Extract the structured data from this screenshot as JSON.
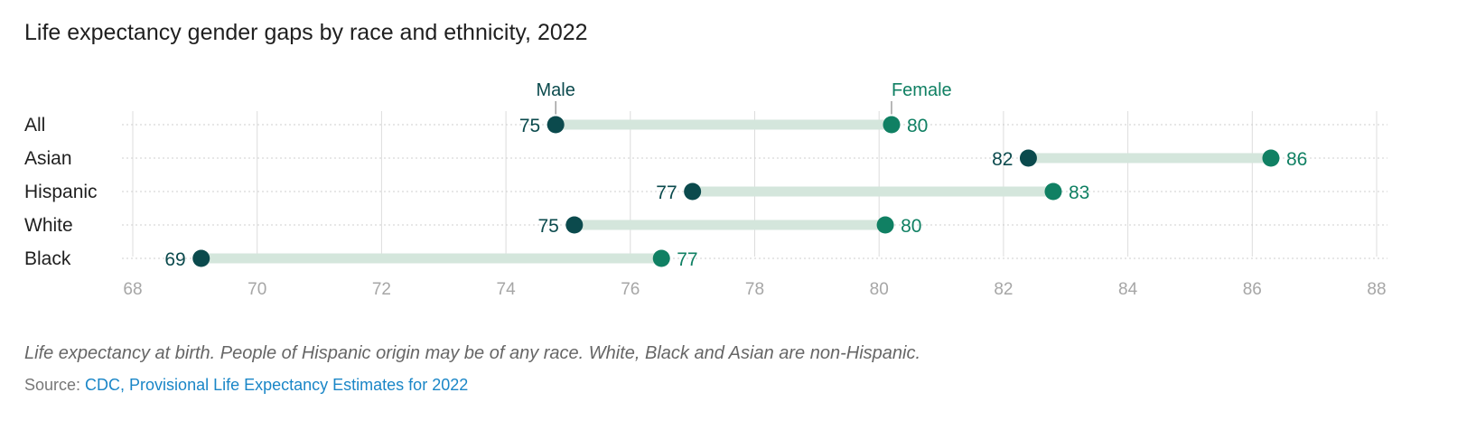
{
  "page": {
    "title": "Life expectancy gender gaps by race and ethnicity, 2022",
    "note": "Life expectancy at birth. People of Hispanic origin may be of any race. White, Black and Asian are non-Hispanic.",
    "source_prefix": "Source: ",
    "source_link_text": "CDC, Provisional Life Expectancy Estimates for 2022"
  },
  "chart_data": {
    "type": "dot-range",
    "title": "Life expectancy gender gaps by race and ethnicity, 2022",
    "categories": [
      "All",
      "Asian",
      "Hispanic",
      "White",
      "Black"
    ],
    "series": [
      {
        "name": "Male",
        "color": "#0b4a4d",
        "values": [
          74.8,
          82.4,
          77.0,
          75.1,
          69.1
        ],
        "labels": [
          "75",
          "82",
          "77",
          "75",
          "69"
        ]
      },
      {
        "name": "Female",
        "color": "#108063",
        "values": [
          80.2,
          86.3,
          82.8,
          80.1,
          76.5
        ],
        "labels": [
          "80",
          "86",
          "83",
          "80",
          "77"
        ]
      }
    ],
    "xlim": [
      68,
      88
    ],
    "xticks": [
      "68",
      "70",
      "72",
      "74",
      "76",
      "78",
      "80",
      "82",
      "84",
      "86",
      "88"
    ],
    "grid": true,
    "range_bar_color": "#d4e6dc",
    "axis_label_color": "#a6a6a6",
    "legend": "inline-above-first-row"
  }
}
